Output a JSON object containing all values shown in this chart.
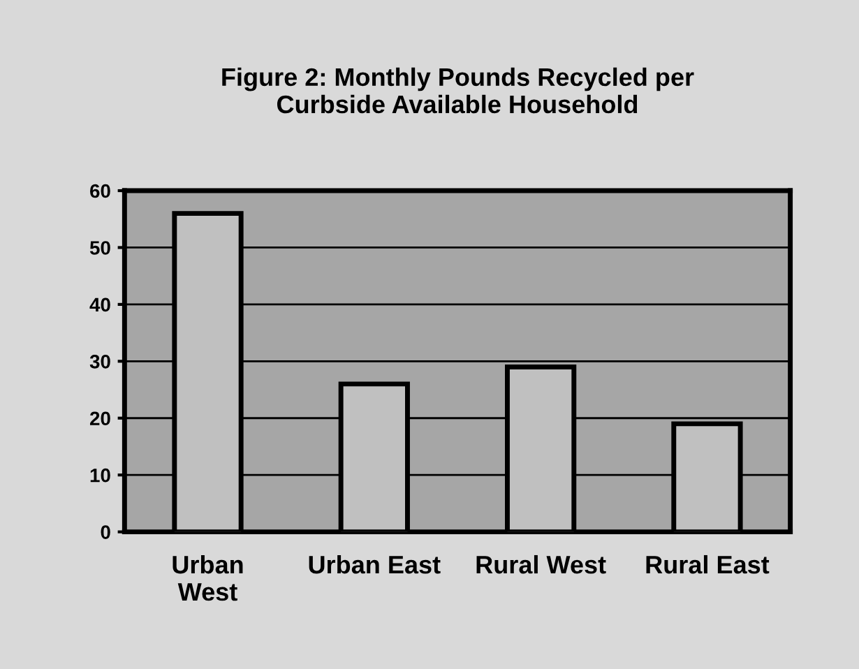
{
  "chart_data": {
    "type": "bar",
    "title": "Figure 2: Monthly Pounds Recycled per\nCurbside Available Household",
    "categories": [
      "Urban\nWest",
      "Urban East",
      "Rural West",
      "Rural East"
    ],
    "values": [
      56,
      26,
      29,
      19
    ],
    "color": "#c0c0c0",
    "ylim": [
      0,
      60
    ],
    "yticks": [
      0,
      10,
      20,
      30,
      40,
      50,
      60
    ],
    "grid": "y",
    "legend": false
  }
}
